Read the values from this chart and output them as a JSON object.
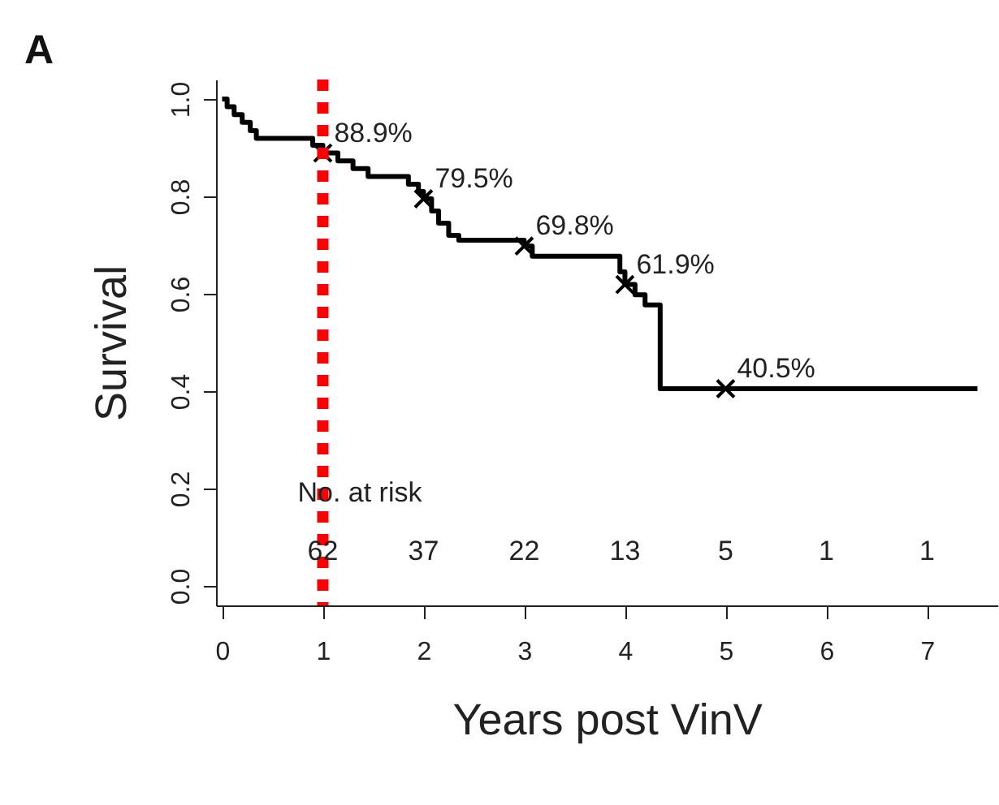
{
  "chart_data": {
    "type": "step",
    "xlabel": "Years post VinV",
    "ylabel": "Survival",
    "xlim": [
      -0.06,
      7.7
    ],
    "ylim": [
      -0.04,
      1.04
    ],
    "xticks": [
      0,
      1,
      2,
      3,
      4,
      5,
      6,
      7
    ],
    "yticks": [
      {
        "value": 0,
        "label": "0.0"
      },
      {
        "value": 0.2,
        "label": "0.2"
      },
      {
        "value": 0.4,
        "label": "0.4"
      },
      {
        "value": 0.6,
        "label": "0.6"
      },
      {
        "value": 0.8,
        "label": "0.8"
      },
      {
        "value": 1,
        "label": "1.0"
      }
    ],
    "grid": false,
    "series": [
      {
        "color": "#000000",
        "line_style": "solid",
        "marker": "none",
        "x": [
          0,
          0.05,
          0.12,
          0.2,
          0.28,
          0.34,
          0.9,
          1.0,
          1.15,
          1.3,
          1.45,
          1.85,
          1.95,
          2.0,
          2.08,
          2.15,
          2.25,
          2.35,
          3.0,
          3.08,
          3.95,
          4.0,
          4.1,
          4.2,
          4.35,
          7.5
        ],
        "values": [
          1.0,
          0.984,
          0.968,
          0.952,
          0.935,
          0.919,
          0.905,
          0.889,
          0.873,
          0.857,
          0.841,
          0.825,
          0.81,
          0.795,
          0.77,
          0.745,
          0.72,
          0.71,
          0.698,
          0.677,
          0.645,
          0.619,
          0.598,
          0.577,
          0.405,
          0.405
        ]
      },
      {
        "type": "scatter",
        "color": "#000000",
        "marker": "cross",
        "x": [
          1,
          2,
          3,
          4,
          5
        ],
        "values": [
          0.889,
          0.795,
          0.698,
          0.619,
          0.405
        ],
        "value_labels": [
          "88.9%",
          "79.5%",
          "69.8%",
          "61.9%",
          "40.5%"
        ]
      }
    ],
    "ref_lines": [
      {
        "axis": "x",
        "value": 1,
        "color": "#ff0000",
        "line_style": "dotted"
      }
    ],
    "annotations": [
      "A",
      "No. at risk",
      "62",
      "37",
      "22",
      "13",
      "5",
      "1",
      "1"
    ]
  }
}
